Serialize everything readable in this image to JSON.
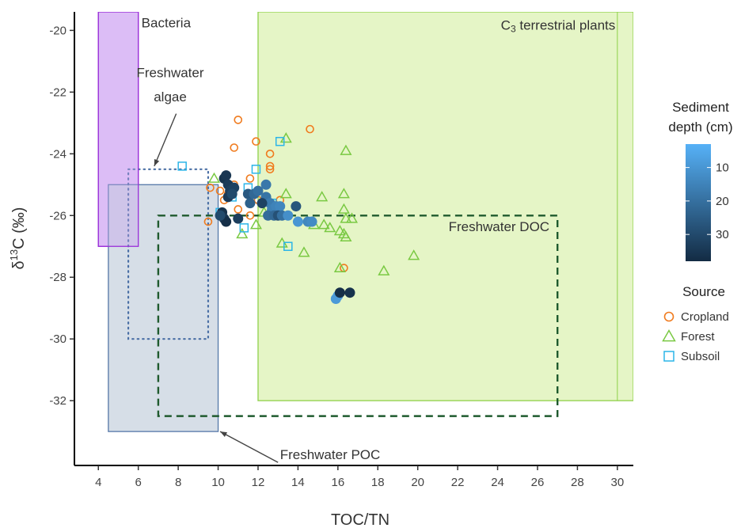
{
  "chart_data": {
    "type": "scatter",
    "xlabel": "TOC/TN",
    "ylabel": "δ13C (‰)",
    "xlim": [
      2.8,
      30.8
    ],
    "ylim": [
      -34.1,
      -19.4
    ],
    "x_ticks": [
      4,
      6,
      8,
      10,
      12,
      14,
      16,
      18,
      20,
      22,
      24,
      26,
      28,
      30
    ],
    "y_ticks": [
      -32,
      -30,
      -28,
      -26,
      -24,
      -22,
      -20
    ],
    "regions": [
      {
        "name": "Bacteria",
        "label": "Bacteria",
        "x": [
          4,
          6
        ],
        "y": [
          -27,
          -19.4
        ],
        "style": "filled",
        "fill": "#e6c9fb",
        "stroke": "#9b30d9"
      },
      {
        "name": "C3 terrestrial plants",
        "label_main": "C",
        "label_sub": "3",
        "label_rest": " terrestrial plants",
        "x": [
          12,
          30.8
        ],
        "y": [
          -32,
          -19.4
        ],
        "style": "filled",
        "fill": "#e5f5c6",
        "stroke": "#8fd14a"
      },
      {
        "name": "Freshwater algae",
        "label_line1": "Freshwater",
        "label_line2": "algae",
        "x": [
          5.5,
          9.5
        ],
        "y": [
          -30,
          -24.5
        ],
        "style": "dotted",
        "stroke": "#4a6fa5"
      },
      {
        "name": "Freshwater POC",
        "label": "Freshwater POC",
        "x": [
          4.5,
          10
        ],
        "y": [
          -33,
          -25
        ],
        "style": "filled",
        "fill": "#cfd8e3",
        "stroke": "#5578a8"
      },
      {
        "name": "Freshwater DOC",
        "label": "Freshwater DOC",
        "x": [
          7,
          27
        ],
        "y": [
          -32.5,
          -26
        ],
        "style": "dashed",
        "stroke": "#1f5a2e"
      }
    ],
    "sources": {
      "Cropland": [
        [
          10.8,
          -25.0
        ],
        [
          10.5,
          -25.3
        ],
        [
          10.3,
          -25.5
        ],
        [
          9.5,
          -26.2
        ],
        [
          10.1,
          -25.2
        ],
        [
          11.0,
          -22.9
        ],
        [
          10.8,
          -23.8
        ],
        [
          11.9,
          -23.6
        ],
        [
          12.6,
          -24.0
        ],
        [
          12.6,
          -24.4
        ],
        [
          12.6,
          -24.5
        ],
        [
          14.6,
          -23.2
        ],
        [
          11.6,
          -24.8
        ],
        [
          11.6,
          -25.6
        ],
        [
          12.8,
          -25.7
        ],
        [
          13.1,
          -25.5
        ],
        [
          11.6,
          -26.0
        ],
        [
          12.6,
          -26.0
        ],
        [
          11.0,
          -25.8
        ],
        [
          16.3,
          -27.7
        ],
        [
          9.6,
          -25.1
        ],
        [
          12.0,
          -25.5
        ],
        [
          12.5,
          -26.0
        ]
      ],
      "Forest": [
        [
          9.8,
          -24.8
        ],
        [
          13.4,
          -23.5
        ],
        [
          16.4,
          -23.9
        ],
        [
          16.3,
          -25.3
        ],
        [
          15.2,
          -25.4
        ],
        [
          13.4,
          -25.3
        ],
        [
          16.3,
          -25.8
        ],
        [
          16.4,
          -26.1
        ],
        [
          16.7,
          -26.1
        ],
        [
          14.8,
          -26.3
        ],
        [
          15.3,
          -26.3
        ],
        [
          15.6,
          -26.4
        ],
        [
          16.1,
          -26.5
        ],
        [
          16.3,
          -26.6
        ],
        [
          16.4,
          -26.7
        ],
        [
          13.2,
          -26.9
        ],
        [
          14.3,
          -27.2
        ],
        [
          16.1,
          -27.7
        ],
        [
          18.3,
          -27.8
        ],
        [
          19.8,
          -27.3
        ],
        [
          11.2,
          -26.6
        ],
        [
          11.9,
          -26.3
        ],
        [
          12.3,
          -25.9
        ]
      ],
      "Subsoil": [
        [
          8.2,
          -24.4
        ],
        [
          11.9,
          -24.5
        ],
        [
          13.1,
          -23.6
        ],
        [
          10.1,
          -25.9
        ],
        [
          11.3,
          -26.4
        ],
        [
          13.5,
          -27.0
        ],
        [
          10.7,
          -25.4
        ],
        [
          12.7,
          -25.6
        ],
        [
          11.5,
          -25.1
        ]
      ]
    },
    "depth_points": [
      [
        10.3,
        -24.8,
        36
      ],
      [
        10.4,
        -24.7,
        35
      ],
      [
        10.5,
        -25.0,
        34
      ],
      [
        10.6,
        -25.2,
        33
      ],
      [
        10.8,
        -25.1,
        32
      ],
      [
        10.5,
        -25.4,
        34
      ],
      [
        10.7,
        -25.3,
        30
      ],
      [
        10.2,
        -25.9,
        36
      ],
      [
        10.3,
        -26.1,
        35
      ],
      [
        10.4,
        -26.2,
        37
      ],
      [
        11.0,
        -26.1,
        33
      ],
      [
        10.1,
        -26.0,
        30
      ],
      [
        11.5,
        -25.3,
        26
      ],
      [
        11.6,
        -25.6,
        24
      ],
      [
        11.8,
        -25.3,
        22
      ],
      [
        12.0,
        -25.2,
        20
      ],
      [
        12.4,
        -25.0,
        18
      ],
      [
        12.4,
        -25.4,
        19
      ],
      [
        12.6,
        -25.6,
        17
      ],
      [
        12.7,
        -25.8,
        16
      ],
      [
        12.9,
        -25.7,
        15
      ],
      [
        13.1,
        -25.7,
        14
      ],
      [
        12.5,
        -26.0,
        21
      ],
      [
        12.8,
        -26.0,
        22
      ],
      [
        13.0,
        -26.0,
        28
      ],
      [
        13.2,
        -26.0,
        20
      ],
      [
        13.5,
        -26.0,
        12
      ],
      [
        14.0,
        -26.2,
        10
      ],
      [
        14.5,
        -26.2,
        14
      ],
      [
        14.7,
        -26.2,
        13
      ],
      [
        13.9,
        -25.7,
        27
      ],
      [
        12.2,
        -25.6,
        32
      ],
      [
        16.0,
        -28.6,
        8
      ],
      [
        15.9,
        -28.7,
        9
      ],
      [
        16.1,
        -28.5,
        37
      ],
      [
        16.6,
        -28.5,
        36
      ]
    ],
    "legend": {
      "depth_title_line1": "Sediment",
      "depth_title_line2": "depth (cm)",
      "depth_range": [
        3,
        38
      ],
      "depth_ticks": [
        10,
        20,
        30
      ],
      "depth_colors": {
        "shallow": "#56b1f7",
        "deep": "#132b43"
      },
      "source_title": "Source",
      "source_items": [
        {
          "label": "Cropland",
          "shape": "circle",
          "color": "#f07b1e"
        },
        {
          "label": "Forest",
          "shape": "triangle",
          "color": "#7ac943"
        },
        {
          "label": "Subsoil",
          "shape": "square",
          "color": "#2cb5e8"
        }
      ]
    },
    "annotations": [
      {
        "target": "Freshwater algae",
        "direction": "arrow-down"
      },
      {
        "target": "Freshwater POC",
        "direction": "arrow-left"
      }
    ],
    "grid": false
  }
}
